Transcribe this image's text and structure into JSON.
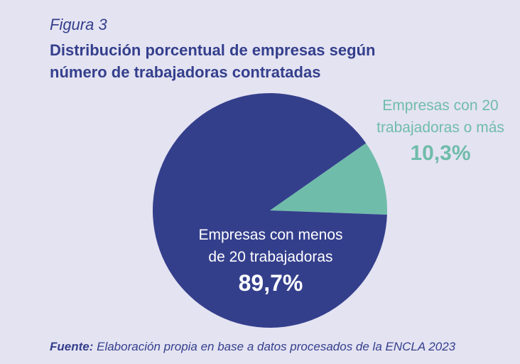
{
  "figure": {
    "label": "Figura 3",
    "title_line1": "Distribución porcentual de empresas según",
    "title_line2": "número de trabajadoras contratadas"
  },
  "chart_data": {
    "type": "pie",
    "slices": [
      {
        "label_line1": "Empresas con 20",
        "label_line2": "trabajadoras o más",
        "value": 10.3,
        "value_label": "10,3%",
        "color": "#6fbcaa"
      },
      {
        "label_line1": "Empresas con menos",
        "label_line2": "de 20 trabajadoras",
        "value": 89.7,
        "value_label": "89,7%",
        "color": "#343f8c"
      }
    ]
  },
  "source": {
    "prefix": "Fuente:",
    "text": " Elaboración propia en base a datos procesados de la ENCLA 2023"
  }
}
